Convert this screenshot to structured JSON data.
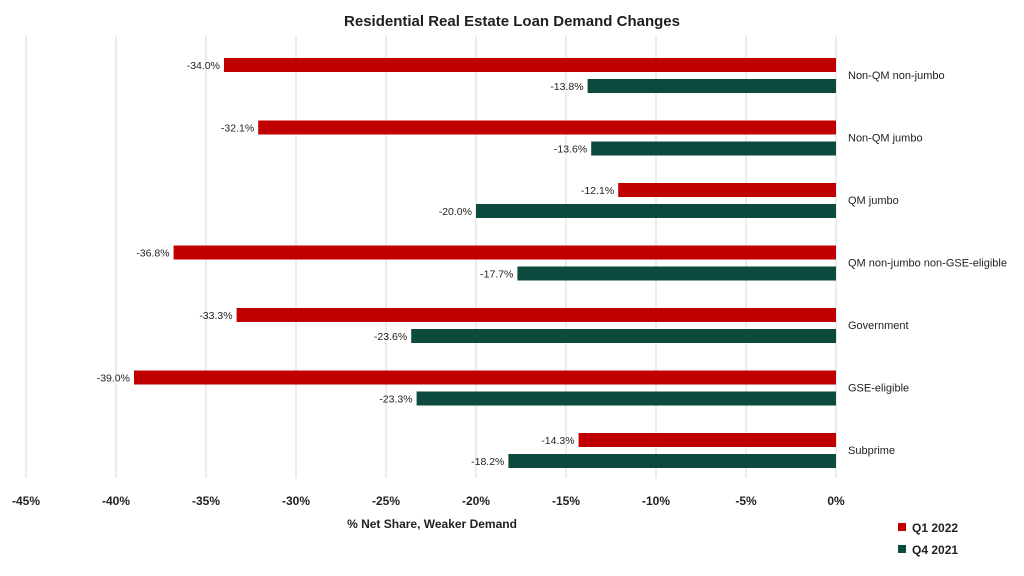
{
  "chart_data": {
    "type": "bar",
    "orientation": "horizontal",
    "title": "Residential Real Estate Loan Demand Changes",
    "xlabel": "% Net Share, Weaker Demand",
    "ylabel": "",
    "xlim": [
      -45,
      0
    ],
    "xticks": [
      -45,
      -40,
      -35,
      -30,
      -25,
      -20,
      -15,
      -10,
      -5,
      0
    ],
    "xtick_labels": [
      "-45%",
      "-40%",
      "-35%",
      "-30%",
      "-25%",
      "-20%",
      "-15%",
      "-10%",
      "-5%",
      "0%"
    ],
    "grid": "vertical",
    "legend_position": "bottom-right",
    "categories": [
      "Non-QM non-jumbo",
      "Non-QM jumbo",
      "QM jumbo",
      "QM non-jumbo non-GSE-eligible",
      "Government",
      "GSE-eligible",
      "Subprime"
    ],
    "series": [
      {
        "name": "Q1 2022",
        "color": "#c00000",
        "values": [
          -34.0,
          -32.1,
          -12.1,
          -36.8,
          -33.3,
          -39.0,
          -14.3
        ],
        "labels": [
          "-34.0%",
          "-32.1%",
          "-12.1%",
          "-36.8%",
          "-33.3%",
          "-39.0%",
          "-14.3%"
        ]
      },
      {
        "name": "Q4 2021",
        "color": "#0b4a3c",
        "values": [
          -13.8,
          -13.6,
          -20.0,
          -17.7,
          -23.6,
          -23.3,
          -18.2
        ],
        "labels": [
          "-13.8%",
          "-13.6%",
          "-20.0%",
          "-17.7%",
          "-23.6%",
          "-23.3%",
          "-18.2%"
        ]
      }
    ]
  }
}
